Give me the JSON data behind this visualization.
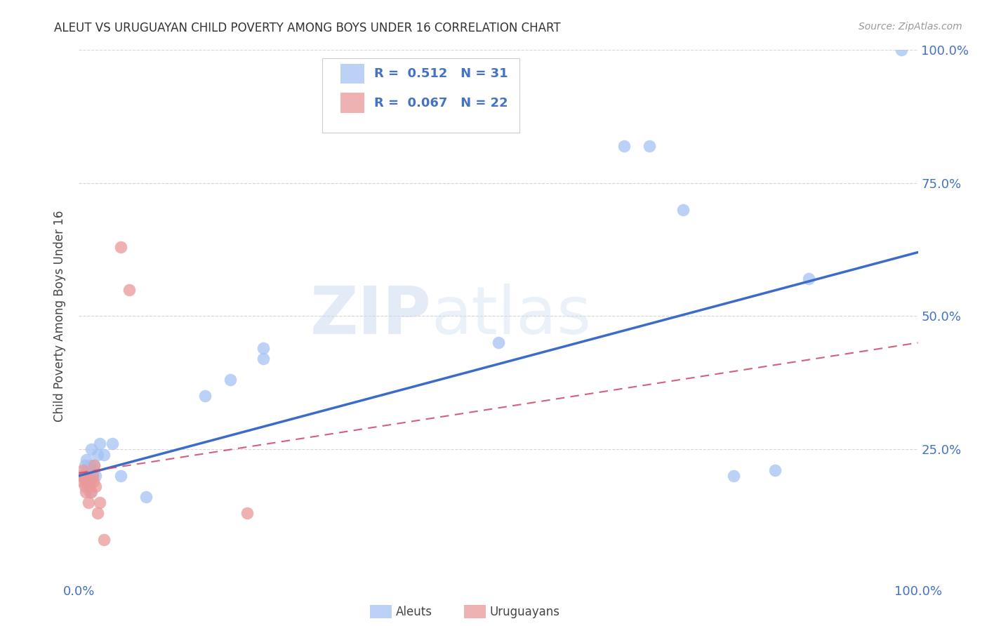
{
  "title": "ALEUT VS URUGUAYAN CHILD POVERTY AMONG BOYS UNDER 16 CORRELATION CHART",
  "source": "Source: ZipAtlas.com",
  "tick_color": "#4472c4",
  "ylabel": "Child Poverty Among Boys Under 16",
  "xlim": [
    0,
    1
  ],
  "ylim": [
    0,
    1
  ],
  "aleut_color": "#a4c2f4",
  "uruguay_color": "#ea9999",
  "aleut_line_color": "#3c6bc9",
  "uruguay_line_color": "#cc4466",
  "aleut_R": 0.512,
  "aleut_N": 31,
  "uruguay_R": 0.067,
  "uruguay_N": 22,
  "legend_label_1": "Aleuts",
  "legend_label_2": "Uruguayans",
  "watermark_zip": "ZIP",
  "watermark_atlas": "atlas",
  "aleut_x": [
    0.005,
    0.007,
    0.008,
    0.009,
    0.01,
    0.012,
    0.013,
    0.014,
    0.015,
    0.016,
    0.017,
    0.018,
    0.02,
    0.022,
    0.025,
    0.03,
    0.04,
    0.05,
    0.08,
    0.15,
    0.18,
    0.22,
    0.22,
    0.5,
    0.65,
    0.68,
    0.72,
    0.78,
    0.83,
    0.87,
    0.98
  ],
  "aleut_y": [
    0.2,
    0.22,
    0.19,
    0.23,
    0.21,
    0.2,
    0.17,
    0.22,
    0.25,
    0.2,
    0.21,
    0.22,
    0.2,
    0.24,
    0.26,
    0.24,
    0.26,
    0.2,
    0.16,
    0.35,
    0.38,
    0.42,
    0.44,
    0.45,
    0.82,
    0.82,
    0.7,
    0.2,
    0.21,
    0.57,
    1.0
  ],
  "uruguay_x": [
    0.003,
    0.004,
    0.005,
    0.006,
    0.007,
    0.008,
    0.009,
    0.01,
    0.011,
    0.012,
    0.013,
    0.015,
    0.016,
    0.017,
    0.018,
    0.02,
    0.022,
    0.025,
    0.03,
    0.05,
    0.06,
    0.2
  ],
  "uruguay_y": [
    0.2,
    0.19,
    0.21,
    0.2,
    0.18,
    0.17,
    0.2,
    0.19,
    0.15,
    0.18,
    0.19,
    0.17,
    0.2,
    0.19,
    0.22,
    0.18,
    0.13,
    0.15,
    0.08,
    0.63,
    0.55,
    0.13
  ],
  "background_color": "#ffffff",
  "grid_color": "#cccccc"
}
